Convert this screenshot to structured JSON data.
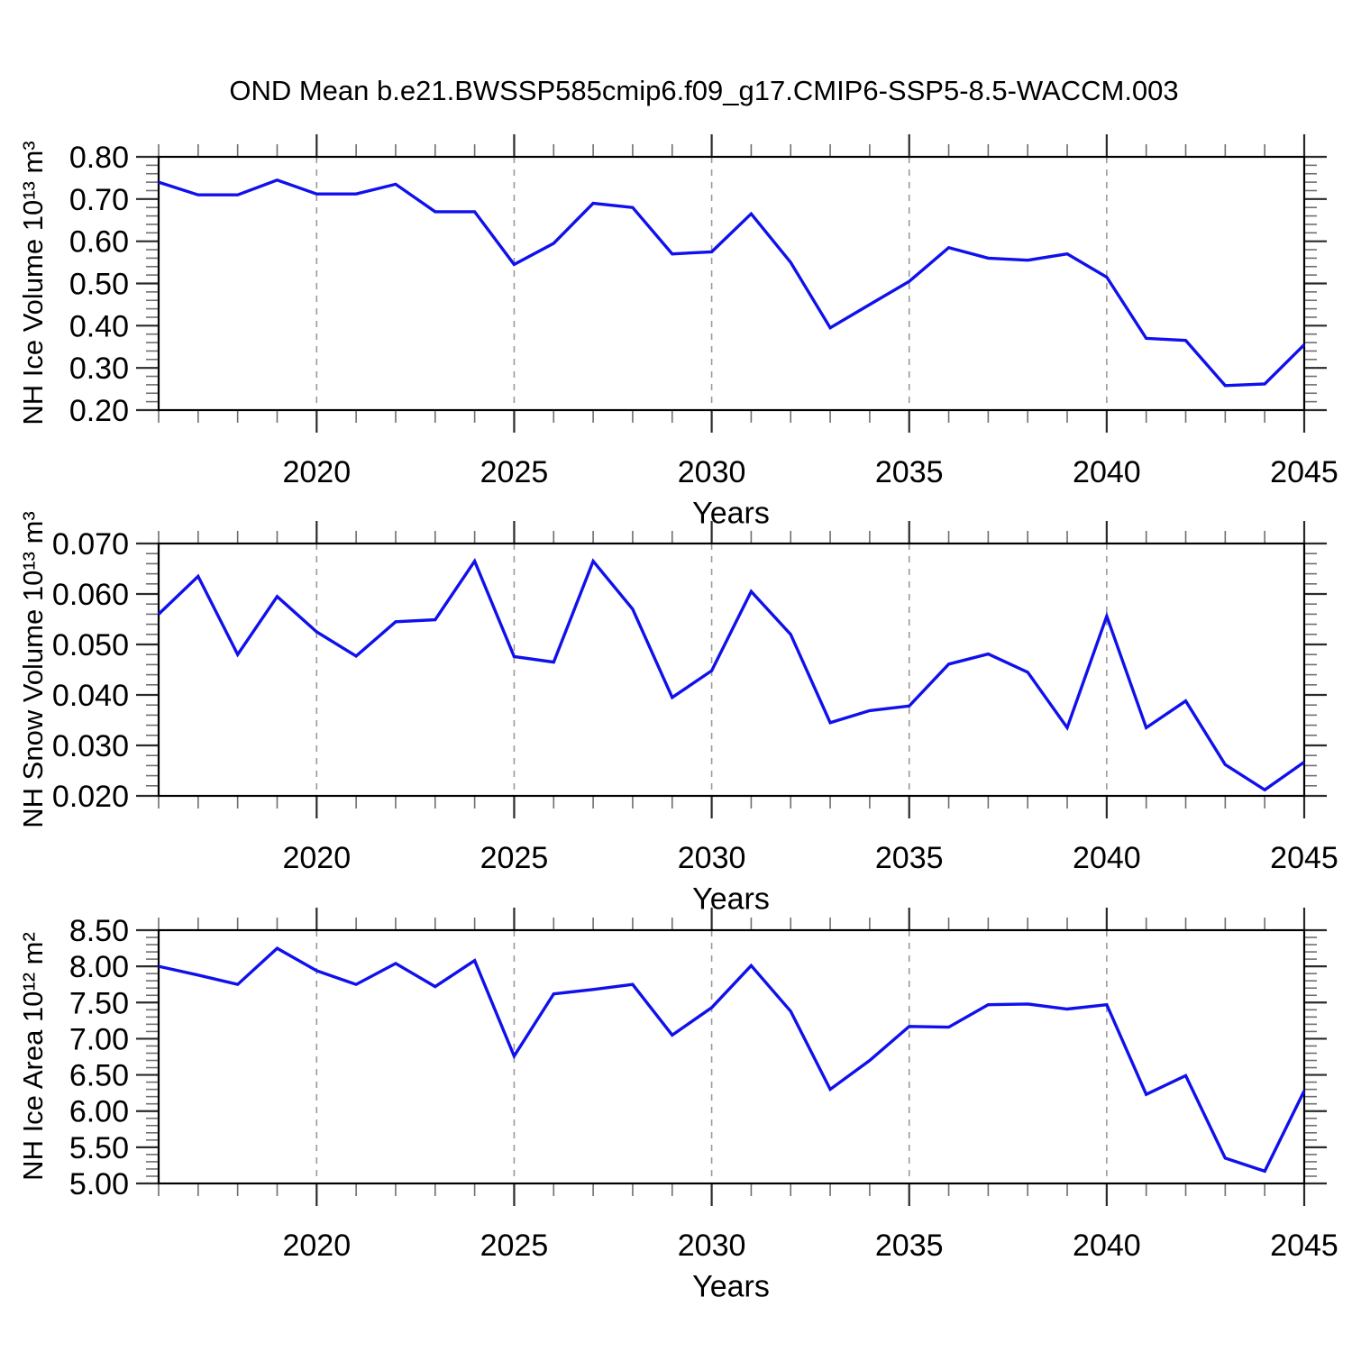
{
  "title": "OND Mean b.e21.BWSSP585cmip6.f09_g17.CMIP6-SSP5-8.5-WACCM.003",
  "colors": {
    "line": "#1010ec",
    "grid": "#999999",
    "frame": "#000000",
    "tick_major": "#2a2a2a",
    "tick_minor": "#6e6e6e",
    "text": "#000000"
  },
  "x_axis": {
    "label": "Years",
    "range": [
      2016,
      2045
    ],
    "major_ticks": [
      2020,
      2025,
      2030,
      2035,
      2040,
      2045
    ],
    "major_tick_labels": [
      "2020",
      "2025",
      "2030",
      "2035",
      "2040",
      "2045"
    ],
    "minor_step": 1,
    "gridlines": [
      2020,
      2025,
      2030,
      2035,
      2040
    ]
  },
  "chart_data": [
    {
      "id": "ice-volume",
      "type": "line",
      "title": "",
      "xlabel": "Years",
      "ylabel": "NH Ice Volume 10¹³ m³",
      "ylim": [
        0.2,
        0.8
      ],
      "ytick_values": [
        0.8,
        0.7,
        0.6,
        0.5,
        0.4,
        0.3,
        0.2
      ],
      "ytick_labels": [
        "0.80",
        "0.70",
        "0.60",
        "0.50",
        "0.40",
        "0.30",
        "0.20"
      ],
      "yminor_step": 0.02,
      "grid": "vertical-dashed",
      "legend": "none",
      "x": [
        2016,
        2017,
        2018,
        2019,
        2020,
        2021,
        2022,
        2023,
        2024,
        2025,
        2026,
        2027,
        2028,
        2029,
        2030,
        2031,
        2032,
        2033,
        2034,
        2035,
        2036,
        2037,
        2038,
        2039,
        2040,
        2041,
        2042,
        2043,
        2044,
        2045
      ],
      "values": [
        0.74,
        0.71,
        0.71,
        0.745,
        0.712,
        0.712,
        0.735,
        0.67,
        0.67,
        0.545,
        0.595,
        0.69,
        0.68,
        0.57,
        0.575,
        0.665,
        0.55,
        0.395,
        0.45,
        0.505,
        0.585,
        0.56,
        0.555,
        0.57,
        0.515,
        0.37,
        0.365,
        0.258,
        0.262,
        0.355
      ]
    },
    {
      "id": "snow-volume",
      "type": "line",
      "title": "",
      "xlabel": "Years",
      "ylabel": "NH Snow Volume 10¹³ m³",
      "ylim": [
        0.02,
        0.07
      ],
      "ytick_values": [
        0.07,
        0.06,
        0.05,
        0.04,
        0.03,
        0.02
      ],
      "ytick_labels": [
        "0.070",
        "0.060",
        "0.050",
        "0.040",
        "0.030",
        "0.020"
      ],
      "yminor_step": 0.002,
      "grid": "vertical-dashed",
      "legend": "none",
      "x": [
        2016,
        2017,
        2018,
        2019,
        2020,
        2021,
        2022,
        2023,
        2024,
        2025,
        2026,
        2027,
        2028,
        2029,
        2030,
        2031,
        2032,
        2033,
        2034,
        2035,
        2036,
        2037,
        2038,
        2039,
        2040,
        2041,
        2042,
        2043,
        2044,
        2045
      ],
      "values": [
        0.056,
        0.0635,
        0.048,
        0.0595,
        0.0525,
        0.0477,
        0.0545,
        0.0549,
        0.0665,
        0.0476,
        0.0465,
        0.0665,
        0.057,
        0.0395,
        0.0448,
        0.0605,
        0.052,
        0.0345,
        0.0369,
        0.0378,
        0.0461,
        0.0481,
        0.0445,
        0.0335,
        0.0556,
        0.0335,
        0.0388,
        0.0262,
        0.0212,
        0.0267
      ]
    },
    {
      "id": "ice-area",
      "type": "line",
      "title": "",
      "xlabel": "Years",
      "ylabel": "NH Ice Area 10¹² m²",
      "ylim": [
        5.0,
        8.5
      ],
      "ytick_values": [
        8.5,
        8.0,
        7.5,
        7.0,
        6.5,
        6.0,
        5.5,
        5.0
      ],
      "ytick_labels": [
        "8.50",
        "8.00",
        "7.50",
        "7.00",
        "6.50",
        "6.00",
        "5.50",
        "5.00"
      ],
      "yminor_step": 0.1,
      "grid": "vertical-dashed",
      "legend": "none",
      "x": [
        2016,
        2017,
        2018,
        2019,
        2020,
        2021,
        2022,
        2023,
        2024,
        2025,
        2026,
        2027,
        2028,
        2029,
        2030,
        2031,
        2032,
        2033,
        2034,
        2035,
        2036,
        2037,
        2038,
        2039,
        2040,
        2041,
        2042,
        2043,
        2044,
        2045
      ],
      "values": [
        8.0,
        7.88,
        7.75,
        8.25,
        7.94,
        7.75,
        8.04,
        7.72,
        8.08,
        6.76,
        7.62,
        7.68,
        7.75,
        7.05,
        7.43,
        8.01,
        7.38,
        6.3,
        6.7,
        7.17,
        7.16,
        7.47,
        7.48,
        7.41,
        7.47,
        6.23,
        6.49,
        5.35,
        5.17,
        6.28
      ]
    }
  ]
}
